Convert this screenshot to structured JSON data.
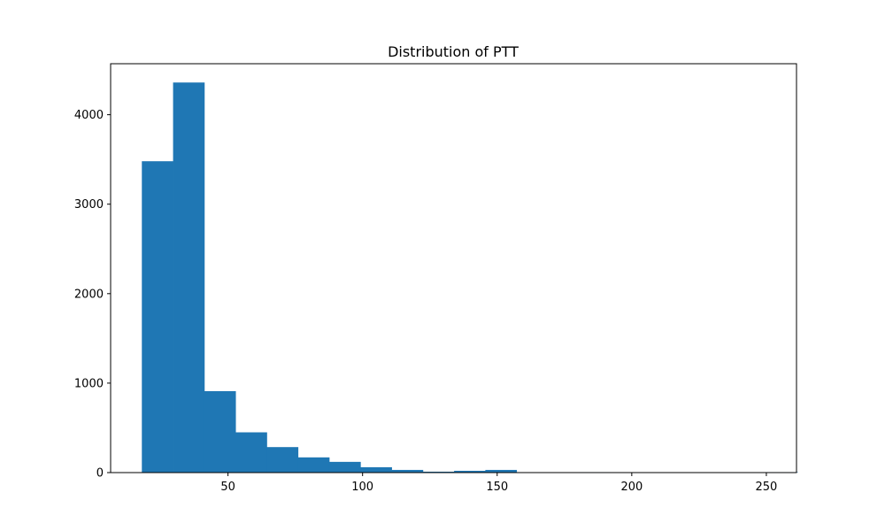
{
  "chart_data": {
    "type": "bar",
    "histogram": true,
    "title": "Distribution of PTT",
    "xlabel": "",
    "ylabel": "",
    "xlim": [
      6.4,
      261.2
    ],
    "ylim": [
      0,
      4570
    ],
    "bin_start": 18.0,
    "bin_width": 11.6,
    "values": [
      3480,
      4360,
      910,
      450,
      285,
      170,
      120,
      60,
      30,
      10,
      20,
      30,
      0,
      0,
      5,
      0,
      0,
      0,
      0,
      0,
      5,
      0
    ],
    "x_ticks": [
      50,
      100,
      150,
      200,
      250
    ],
    "y_ticks": [
      0,
      1000,
      2000,
      3000,
      4000
    ],
    "bar_color": "#1f77b4",
    "grid": false,
    "legend": "none"
  }
}
